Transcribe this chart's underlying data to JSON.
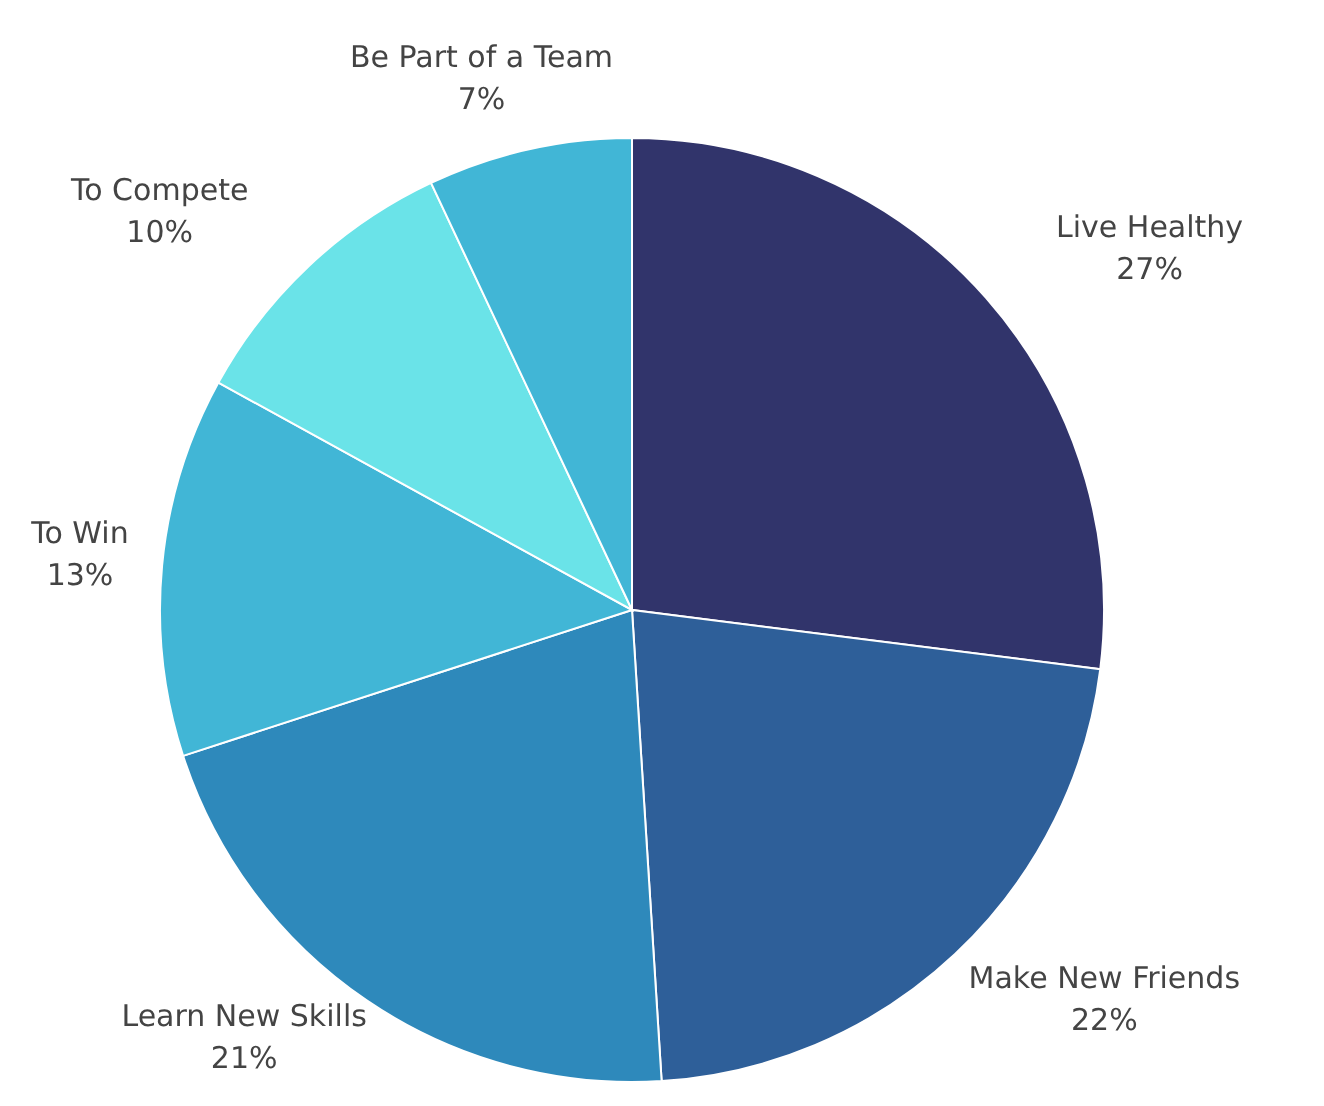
{
  "chart_data": {
    "type": "pie",
    "categories": [
      "Live Healthy",
      "Make New Friends",
      "Learn New Skills",
      "To Win",
      "To Compete",
      "Be Part of a Team"
    ],
    "values": [
      27,
      22,
      21,
      13,
      10,
      7
    ],
    "colors": [
      "#31346b",
      "#2e5f99",
      "#2e89bb",
      "#41b6d6",
      "#6ae3e8",
      "#41b6d6"
    ],
    "value_labels": [
      "27%",
      "22%",
      "21%",
      "13%",
      "10%",
      "7%"
    ]
  }
}
